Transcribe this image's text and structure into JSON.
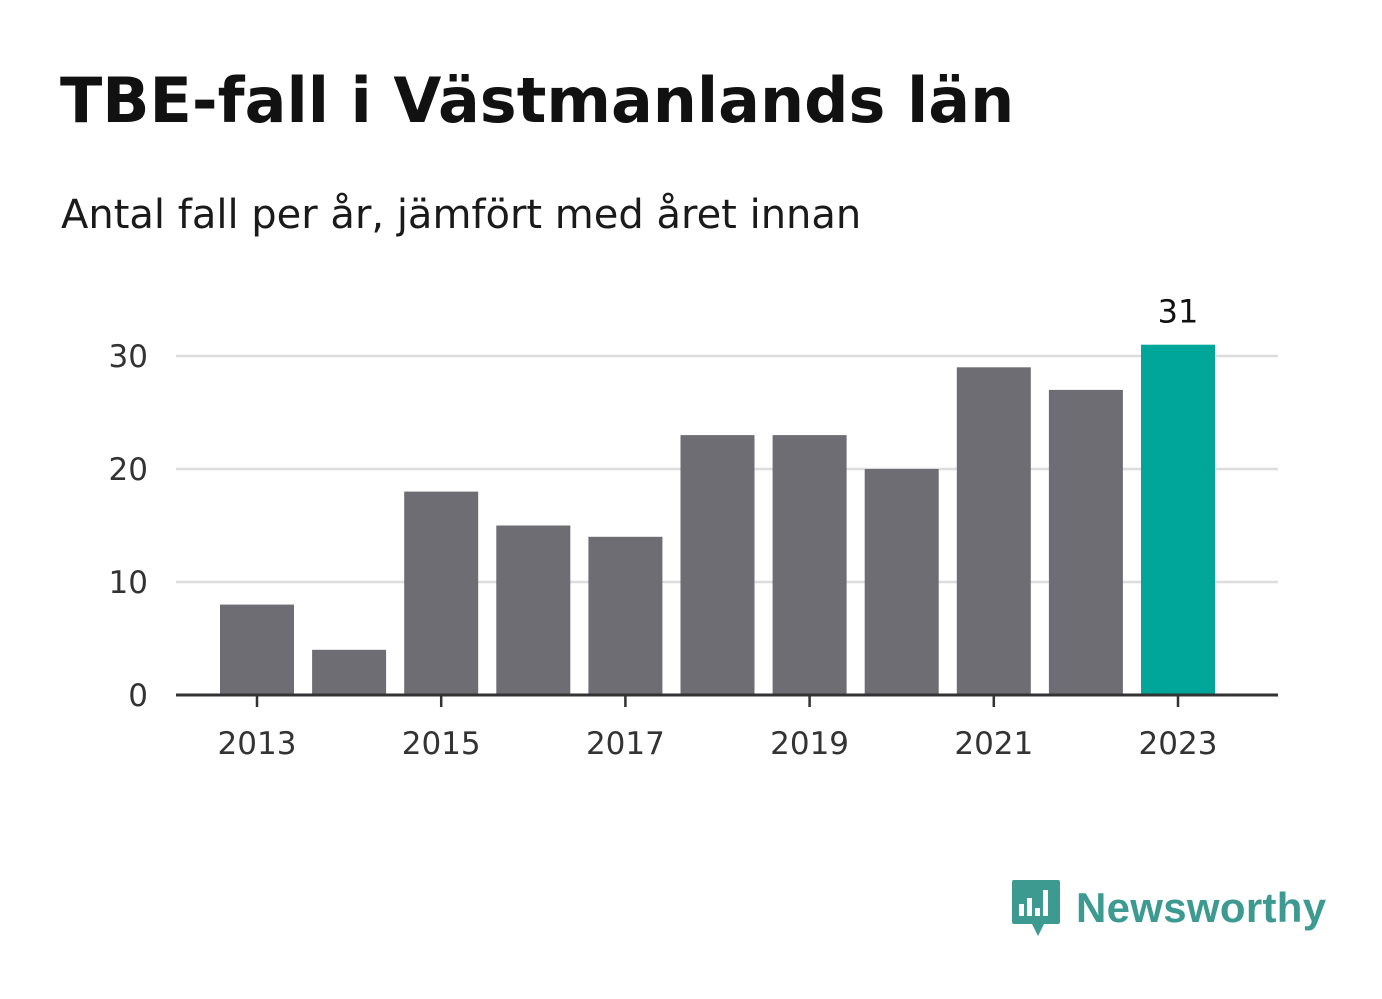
{
  "header": {
    "title": "TBE-fall i Västmanlands län",
    "subtitle": "Antal fall per år, jämfört med året innan"
  },
  "brand": {
    "name": "Newsworthy",
    "icon": "newsworthy-logo-icon",
    "color": "#3d9a91"
  },
  "colors": {
    "bar": "#6e6d73",
    "highlight": "#00a699",
    "grid": "#dddddd",
    "axis": "#333333"
  },
  "chart_data": {
    "type": "bar",
    "categories": [
      "2013",
      "2014",
      "2015",
      "2016",
      "2017",
      "2018",
      "2019",
      "2020",
      "2021",
      "2022",
      "2023"
    ],
    "values": [
      8,
      4,
      18,
      15,
      14,
      23,
      23,
      20,
      29,
      27,
      31
    ],
    "highlight_index": 10,
    "highlight_label": "31",
    "x_tick_labels": [
      "2013",
      "2015",
      "2017",
      "2019",
      "2021",
      "2023"
    ],
    "y_ticks": [
      0,
      10,
      20,
      30
    ],
    "y_tick_labels": [
      "0",
      "10",
      "20",
      "30"
    ],
    "ylim": [
      0,
      30
    ],
    "grid": true,
    "legend": "none"
  }
}
